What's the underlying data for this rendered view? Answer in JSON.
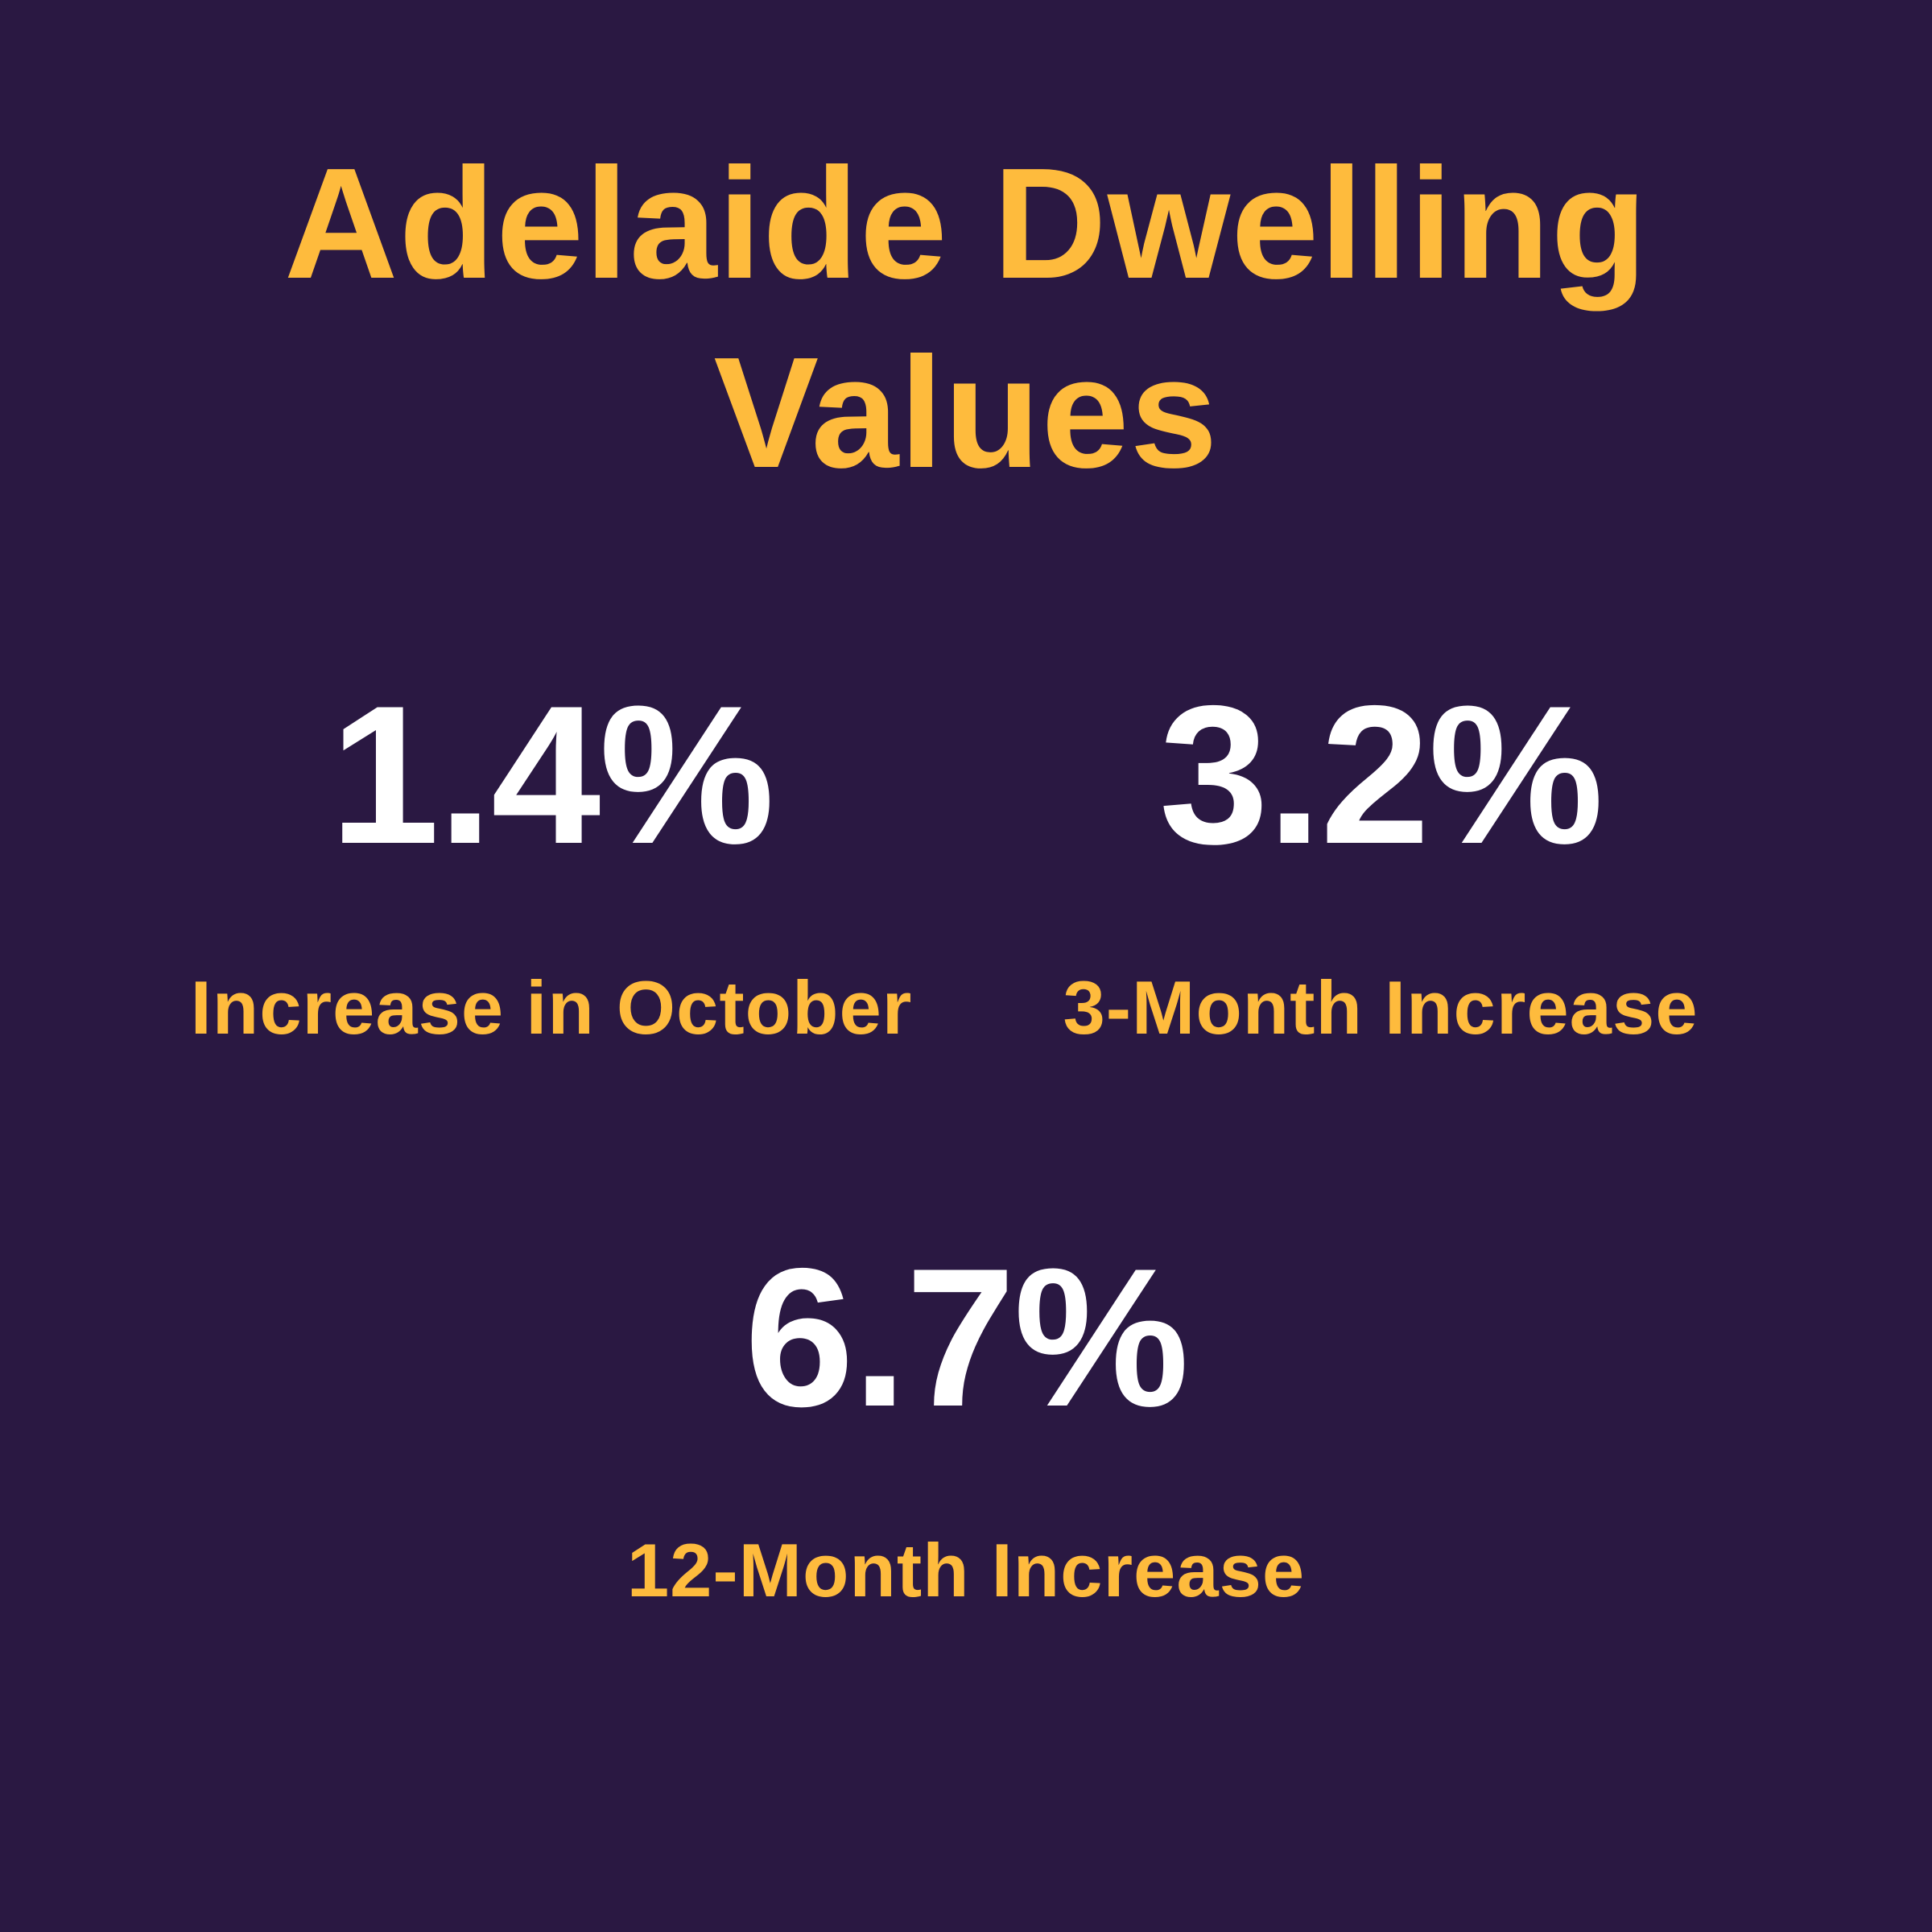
{
  "page": {
    "background_color": "#2A1842",
    "accent_color": "#FEBB3D",
    "value_color": "#FFFFFF"
  },
  "title": {
    "line1": "Adelaide Dwelling",
    "line2": "Values"
  },
  "stats": [
    {
      "value": "1.4%",
      "label": "Increase in October"
    },
    {
      "value": "3.2%",
      "label": "3-Month Increase"
    },
    {
      "value": "6.7%",
      "label": "12-Month Increase"
    }
  ],
  "chart_data": {
    "type": "table",
    "title": "Adelaide Dwelling Values",
    "categories": [
      "Increase in October",
      "3-Month Increase",
      "12-Month Increase"
    ],
    "values": [
      1.4,
      3.2,
      6.7
    ],
    "unit": "%",
    "notes": "Infographic stat callouts; no axes or gridlines"
  }
}
